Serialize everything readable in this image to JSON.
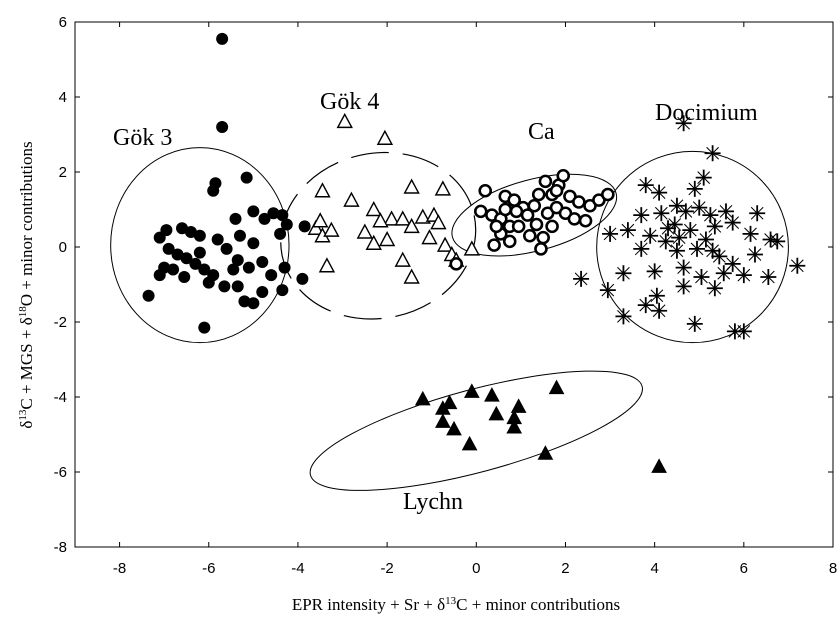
{
  "chart_data": {
    "type": "scatter",
    "xlabel_parts": [
      "EPR intensity + Sr + δ",
      "13",
      "C + minor contributions"
    ],
    "ylabel_parts": [
      "δ",
      "13",
      "C + MGS + δ",
      "18",
      "O + minor contributions"
    ],
    "xlim": [
      -9,
      8
    ],
    "ylim": [
      -8,
      6
    ],
    "xticks": [
      "-8",
      "-6",
      "-4",
      "-2",
      "0",
      "2",
      "4",
      "6",
      "8"
    ],
    "yticks": [
      "-8",
      "-6",
      "-4",
      "-2",
      "0",
      "2",
      "4",
      "6"
    ],
    "grid": false,
    "series": [
      {
        "name": "Gök 3",
        "marker": "filled-circle",
        "ellipse": {
          "cx": -6.2,
          "cy": 0.05,
          "rx": 2.0,
          "ry": 2.6,
          "angle": 0,
          "dashed": false
        },
        "points": [
          [
            -5.7,
            5.55
          ],
          [
            -5.7,
            3.2
          ],
          [
            -7.35,
            -1.3
          ],
          [
            -6.1,
            -2.15
          ],
          [
            -5.15,
            1.85
          ],
          [
            -5.85,
            1.7
          ],
          [
            -5.9,
            1.5
          ],
          [
            -4.35,
            0.85
          ],
          [
            -5.4,
            0.75
          ],
          [
            -5.0,
            0.95
          ],
          [
            -4.55,
            0.9
          ],
          [
            -4.25,
            0.6
          ],
          [
            -4.4,
            0.35
          ],
          [
            -3.85,
            0.55
          ],
          [
            -4.75,
            0.75
          ],
          [
            -6.6,
            0.5
          ],
          [
            -6.95,
            0.45
          ],
          [
            -6.4,
            0.4
          ],
          [
            -6.2,
            0.3
          ],
          [
            -5.8,
            0.2
          ],
          [
            -5.3,
            0.3
          ],
          [
            -5.0,
            0.1
          ],
          [
            -5.6,
            -0.05
          ],
          [
            -7.1,
            0.25
          ],
          [
            -6.9,
            -0.05
          ],
          [
            -6.7,
            -0.2
          ],
          [
            -6.5,
            -0.3
          ],
          [
            -6.3,
            -0.45
          ],
          [
            -6.1,
            -0.6
          ],
          [
            -5.9,
            -0.75
          ],
          [
            -7.0,
            -0.55
          ],
          [
            -7.1,
            -0.75
          ],
          [
            -6.8,
            -0.6
          ],
          [
            -6.55,
            -0.8
          ],
          [
            -6.0,
            -0.95
          ],
          [
            -5.65,
            -1.05
          ],
          [
            -5.35,
            -0.35
          ],
          [
            -5.1,
            -0.55
          ],
          [
            -4.8,
            -0.4
          ],
          [
            -4.6,
            -0.75
          ],
          [
            -4.3,
            -0.55
          ],
          [
            -3.9,
            -0.85
          ],
          [
            -4.35,
            -1.15
          ],
          [
            -5.2,
            -1.45
          ],
          [
            -5.0,
            -1.5
          ],
          [
            -4.8,
            -1.2
          ],
          [
            -5.35,
            -1.05
          ],
          [
            -6.2,
            -0.15
          ],
          [
            -5.45,
            -0.6
          ]
        ]
      },
      {
        "name": "Gök 4",
        "marker": "open-triangle",
        "ellipse": {
          "cx": -2.2,
          "cy": 0.3,
          "rx": 2.2,
          "ry": 2.2,
          "angle": -12,
          "dashed": true
        },
        "points": [
          [
            -2.95,
            3.35
          ],
          [
            -2.05,
            2.9
          ],
          [
            -3.45,
            1.5
          ],
          [
            -2.8,
            1.25
          ],
          [
            -1.45,
            1.6
          ],
          [
            -0.75,
            1.55
          ],
          [
            -2.3,
            1.0
          ],
          [
            -1.9,
            0.75
          ],
          [
            -1.65,
            0.75
          ],
          [
            -1.2,
            0.8
          ],
          [
            -0.95,
            0.85
          ],
          [
            -0.85,
            0.65
          ],
          [
            -2.15,
            0.7
          ],
          [
            -2.5,
            0.4
          ],
          [
            -3.6,
            0.5
          ],
          [
            -3.5,
            0.7
          ],
          [
            -3.45,
            0.3
          ],
          [
            -3.25,
            0.45
          ],
          [
            -2.0,
            0.2
          ],
          [
            -2.3,
            0.1
          ],
          [
            -1.45,
            0.55
          ],
          [
            -1.05,
            0.25
          ],
          [
            -0.7,
            0.05
          ],
          [
            -0.55,
            -0.2
          ],
          [
            -0.45,
            -0.35
          ],
          [
            -1.65,
            -0.35
          ],
          [
            -1.45,
            -0.8
          ],
          [
            -3.35,
            -0.5
          ],
          [
            -0.1,
            -0.05
          ]
        ]
      },
      {
        "name": "Ca",
        "marker": "open-circle",
        "ellipse": {
          "cx": 1.3,
          "cy": 0.85,
          "rx": 1.9,
          "ry": 0.95,
          "angle": -15,
          "dashed": false
        },
        "points": [
          [
            0.2,
            1.5
          ],
          [
            0.65,
            1.35
          ],
          [
            0.85,
            1.25
          ],
          [
            1.05,
            1.05
          ],
          [
            1.3,
            1.1
          ],
          [
            1.4,
            1.4
          ],
          [
            1.55,
            1.75
          ],
          [
            1.7,
            1.4
          ],
          [
            1.85,
            1.65
          ],
          [
            1.95,
            1.9
          ],
          [
            2.1,
            1.35
          ],
          [
            2.3,
            1.2
          ],
          [
            2.55,
            1.1
          ],
          [
            2.75,
            1.25
          ],
          [
            2.95,
            1.4
          ],
          [
            0.1,
            0.95
          ],
          [
            0.35,
            0.85
          ],
          [
            0.55,
            0.75
          ],
          [
            0.75,
            0.55
          ],
          [
            0.9,
            0.95
          ],
          [
            1.15,
            0.85
          ],
          [
            1.35,
            0.6
          ],
          [
            1.6,
            0.9
          ],
          [
            1.8,
            1.05
          ],
          [
            2.0,
            0.9
          ],
          [
            2.2,
            0.75
          ],
          [
            2.45,
            0.7
          ],
          [
            0.4,
            0.05
          ],
          [
            0.55,
            0.35
          ],
          [
            0.75,
            0.15
          ],
          [
            1.5,
            0.25
          ],
          [
            1.45,
            -0.05
          ],
          [
            1.2,
            0.3
          ],
          [
            0.95,
            0.55
          ],
          [
            0.65,
            1.0
          ],
          [
            0.45,
            0.55
          ],
          [
            1.7,
            0.55
          ],
          [
            1.8,
            1.5
          ],
          [
            -0.45,
            -0.45
          ]
        ]
      },
      {
        "name": "Docimium",
        "marker": "asterisk",
        "ellipse": {
          "cx": 4.85,
          "cy": 0.0,
          "rx": 2.15,
          "ry": 2.55,
          "angle": 0,
          "dashed": false
        },
        "points": [
          [
            4.65,
            3.3
          ],
          [
            5.3,
            2.5
          ],
          [
            3.8,
            1.65
          ],
          [
            4.1,
            1.45
          ],
          [
            4.9,
            1.55
          ],
          [
            5.1,
            1.85
          ],
          [
            4.5,
            1.1
          ],
          [
            4.7,
            0.95
          ],
          [
            5.0,
            1.05
          ],
          [
            5.25,
            0.85
          ],
          [
            3.7,
            0.85
          ],
          [
            4.15,
            0.9
          ],
          [
            4.45,
            0.6
          ],
          [
            4.8,
            0.45
          ],
          [
            5.6,
            0.95
          ],
          [
            6.3,
            0.9
          ],
          [
            3.0,
            0.35
          ],
          [
            3.4,
            0.45
          ],
          [
            3.9,
            0.3
          ],
          [
            4.25,
            0.15
          ],
          [
            4.55,
            0.25
          ],
          [
            5.15,
            0.2
          ],
          [
            5.35,
            0.55
          ],
          [
            5.75,
            0.65
          ],
          [
            6.15,
            0.35
          ],
          [
            6.6,
            0.2
          ],
          [
            6.75,
            0.15
          ],
          [
            3.7,
            -0.05
          ],
          [
            4.5,
            -0.1
          ],
          [
            4.95,
            -0.05
          ],
          [
            5.45,
            -0.25
          ],
          [
            5.75,
            -0.45
          ],
          [
            3.3,
            -0.7
          ],
          [
            4.0,
            -0.65
          ],
          [
            4.65,
            -0.55
          ],
          [
            5.05,
            -0.8
          ],
          [
            5.55,
            -0.7
          ],
          [
            6.0,
            -0.75
          ],
          [
            6.55,
            -0.8
          ],
          [
            7.2,
            -0.5
          ],
          [
            2.35,
            -0.85
          ],
          [
            2.95,
            -1.15
          ],
          [
            4.05,
            -1.3
          ],
          [
            4.65,
            -1.05
          ],
          [
            5.35,
            -1.1
          ],
          [
            3.8,
            -1.55
          ],
          [
            3.3,
            -1.85
          ],
          [
            4.1,
            -1.7
          ],
          [
            4.9,
            -2.05
          ],
          [
            5.8,
            -2.25
          ],
          [
            6.0,
            -2.25
          ],
          [
            5.3,
            -0.1
          ],
          [
            6.25,
            -0.2
          ],
          [
            4.3,
            0.5
          ]
        ]
      },
      {
        "name": "Lychn",
        "marker": "filled-triangle",
        "ellipse": {
          "cx": 0.0,
          "cy": -4.9,
          "rx": 3.85,
          "ry": 1.1,
          "angle": -15,
          "dashed": false
        },
        "points": [
          [
            -1.2,
            -4.05
          ],
          [
            -0.75,
            -4.3
          ],
          [
            -0.6,
            -4.15
          ],
          [
            -0.75,
            -4.65
          ],
          [
            -0.5,
            -4.85
          ],
          [
            -0.15,
            -5.25
          ],
          [
            -0.1,
            -3.85
          ],
          [
            0.35,
            -3.95
          ],
          [
            0.45,
            -4.45
          ],
          [
            0.85,
            -4.55
          ],
          [
            0.95,
            -4.25
          ],
          [
            0.85,
            -4.8
          ],
          [
            1.55,
            -5.5
          ],
          [
            1.8,
            -3.75
          ],
          [
            4.1,
            -5.85
          ]
        ]
      }
    ]
  },
  "labels": {
    "gok3": "Gök 3",
    "gok4": "Gök 4",
    "ca": "Ca",
    "docimium": "Docimium",
    "lychn": "Lychn"
  }
}
